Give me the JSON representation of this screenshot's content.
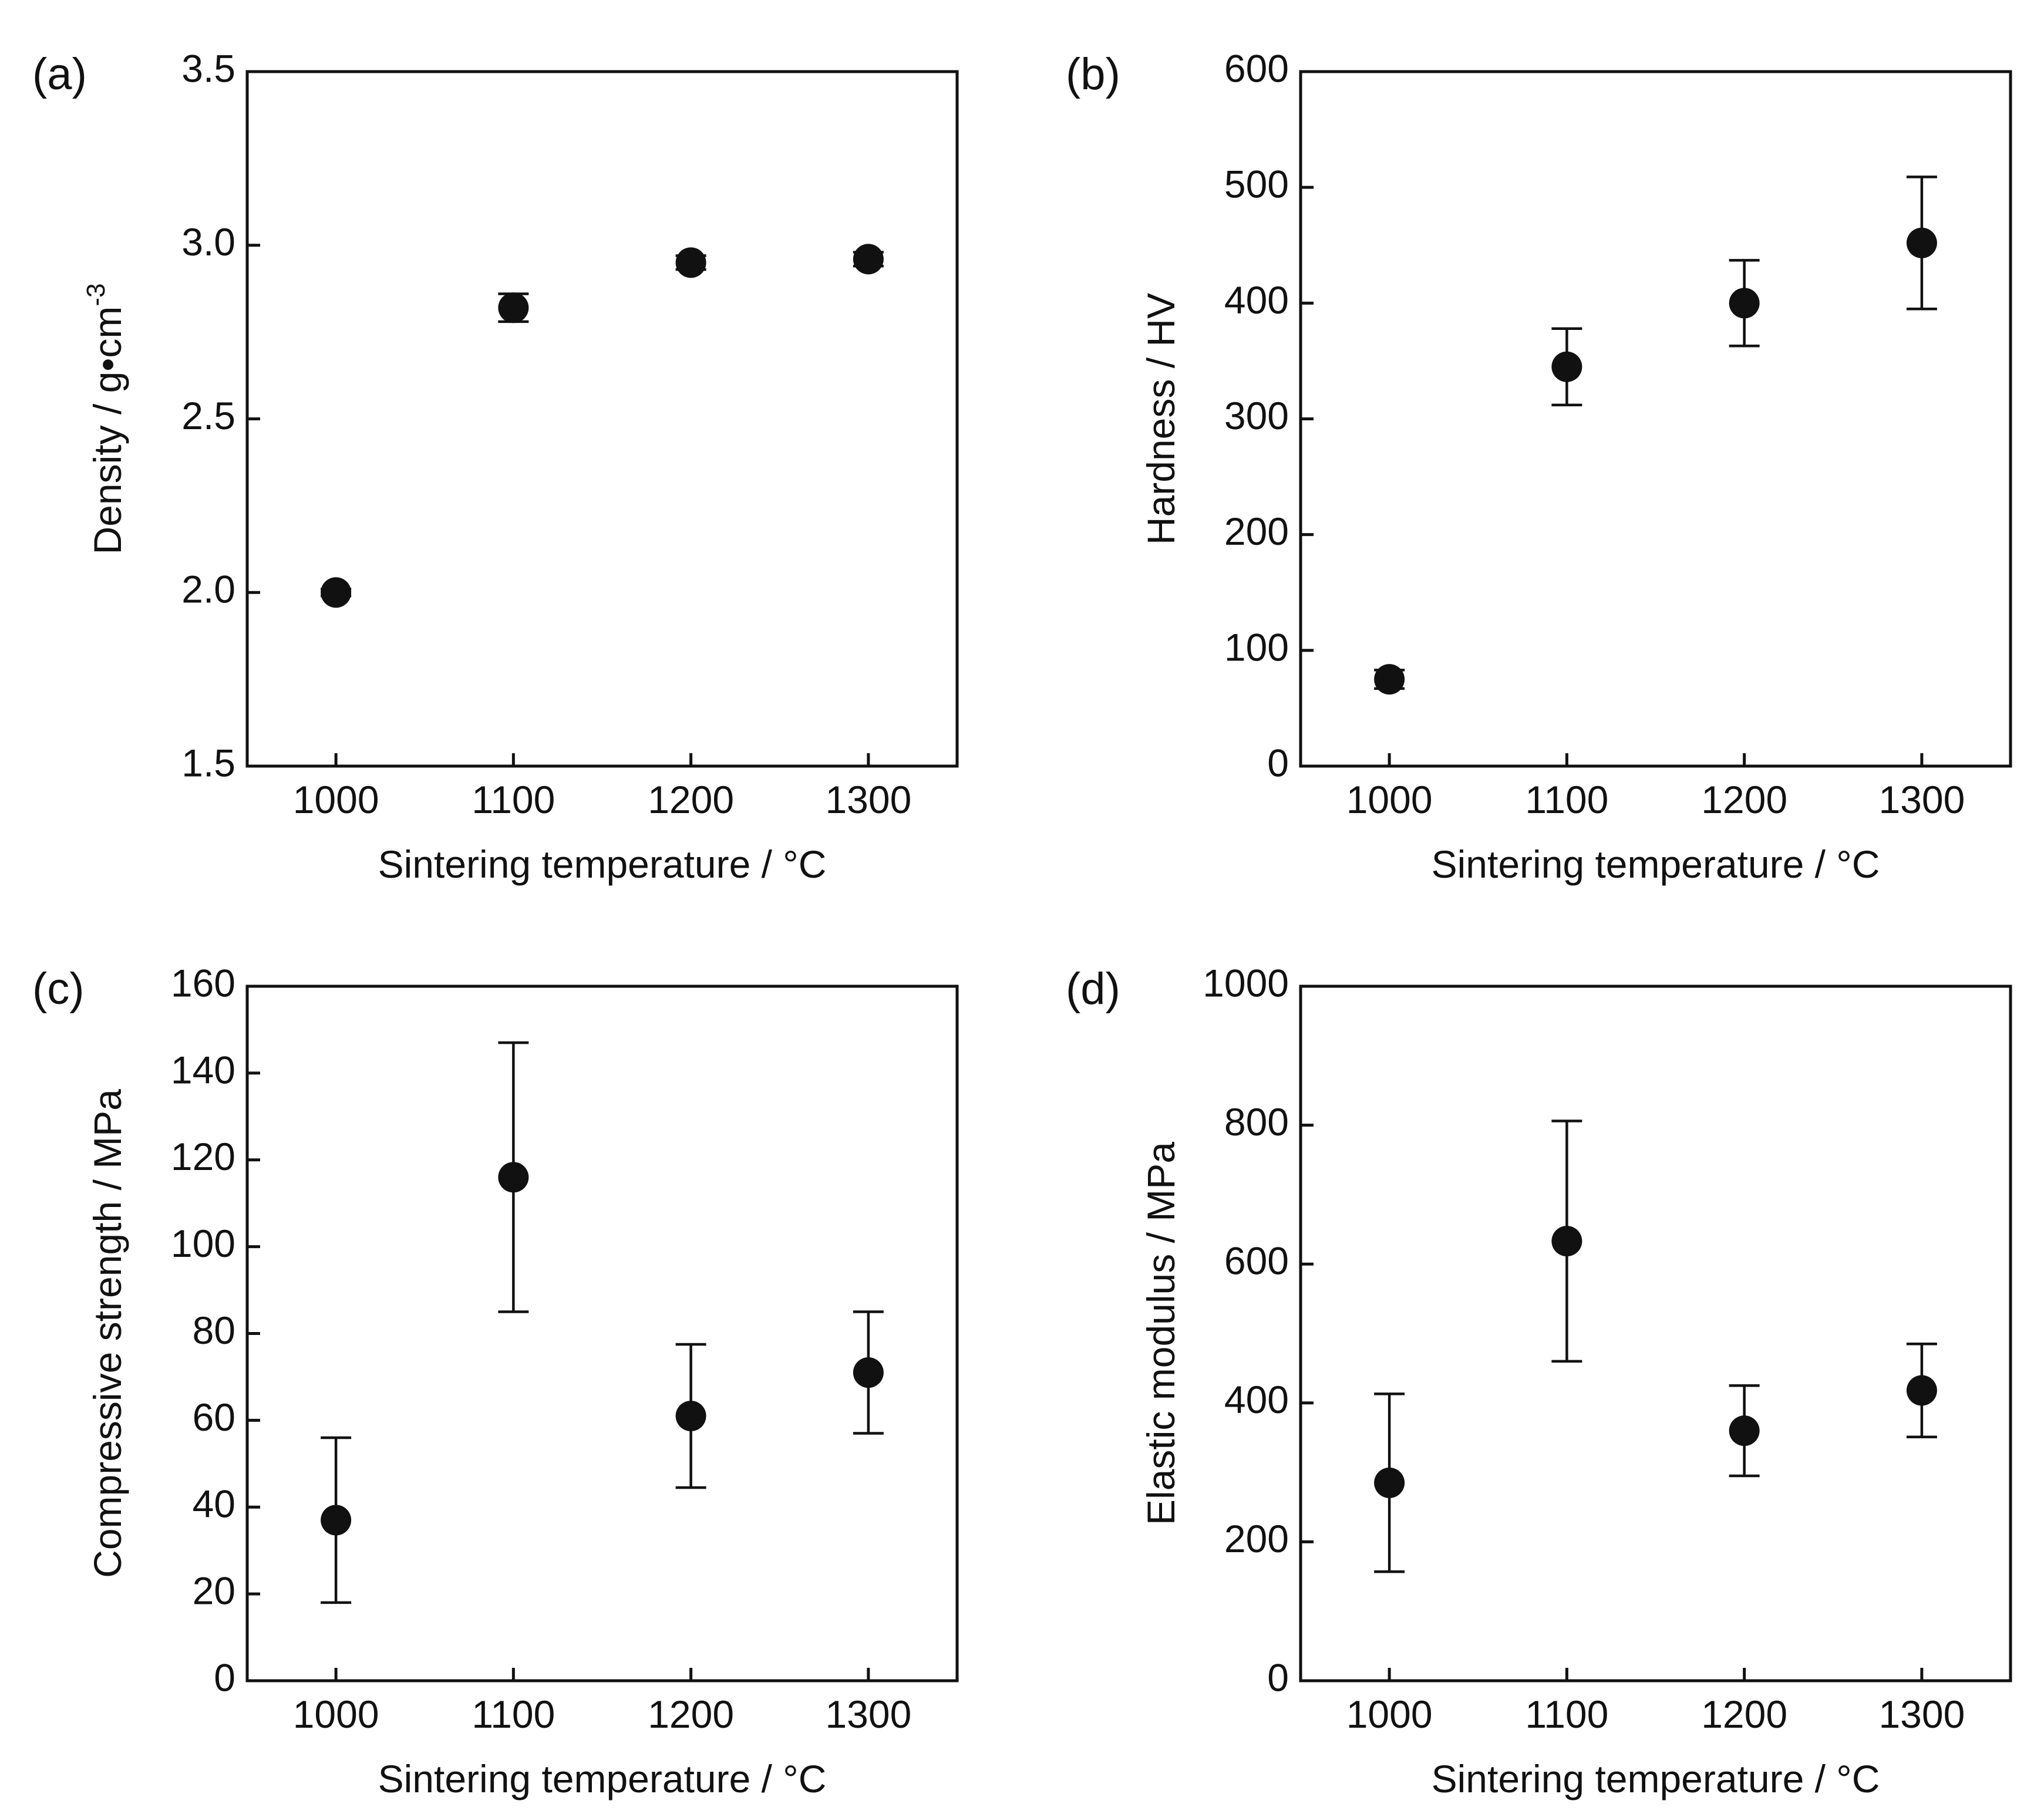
{
  "chart_data": [
    {
      "id": "a",
      "type": "scatter",
      "panel_label": "(a)",
      "xlabel": "Sintering temperature / °C",
      "ylabel": "Density / g•cm",
      "ylabel_superscript": "-3",
      "x": [
        1000,
        1100,
        1200,
        1300
      ],
      "y": [
        2.0,
        2.82,
        2.95,
        2.96
      ],
      "yerr": [
        0.01,
        0.04,
        0.02,
        0.02
      ],
      "xlim": [
        950,
        1350
      ],
      "ylim": [
        1.5,
        3.5
      ],
      "xticks": [
        1000,
        1100,
        1200,
        1300
      ],
      "yticks": [
        1.5,
        2.0,
        2.5,
        3.0,
        3.5
      ],
      "xtick_labels": [
        "1000",
        "1100",
        "1200",
        "1300"
      ],
      "ytick_labels": [
        "1.5",
        "2.0",
        "2.5",
        "3.0",
        "3.5"
      ],
      "grid": false
    },
    {
      "id": "b",
      "type": "scatter",
      "panel_label": "(b)",
      "xlabel": "Sintering temperature / °C",
      "ylabel": "Hardness / HV",
      "x": [
        1000,
        1100,
        1200,
        1300
      ],
      "y": [
        75,
        345,
        400,
        452
      ],
      "yerr": [
        8,
        33,
        37,
        57
      ],
      "xlim": [
        950,
        1350
      ],
      "ylim": [
        0,
        600
      ],
      "xticks": [
        1000,
        1100,
        1200,
        1300
      ],
      "yticks": [
        0,
        100,
        200,
        300,
        400,
        500,
        600
      ],
      "xtick_labels": [
        "1000",
        "1100",
        "1200",
        "1300"
      ],
      "ytick_labels": [
        "0",
        "100",
        "200",
        "300",
        "400",
        "500",
        "600"
      ],
      "grid": false
    },
    {
      "id": "c",
      "type": "scatter",
      "panel_label": "(c)",
      "xlabel": "Sintering temperature / °C",
      "ylabel": "Compressive strength / MPa",
      "x": [
        1000,
        1100,
        1200,
        1300
      ],
      "y": [
        37,
        116,
        61,
        71
      ],
      "yerr": [
        19,
        31,
        16.5,
        14
      ],
      "xlim": [
        950,
        1350
      ],
      "ylim": [
        0,
        160
      ],
      "xticks": [
        1000,
        1100,
        1200,
        1300
      ],
      "yticks": [
        0,
        20,
        40,
        60,
        80,
        100,
        120,
        140,
        160
      ],
      "xtick_labels": [
        "1000",
        "1100",
        "1200",
        "1300"
      ],
      "ytick_labels": [
        "0",
        "20",
        "40",
        "60",
        "80",
        "100",
        "120",
        "140",
        "160"
      ],
      "grid": false
    },
    {
      "id": "d",
      "type": "scatter",
      "panel_label": "(d)",
      "xlabel": "Sintering temperature / °C",
      "ylabel": "Elastic modulus / MPa",
      "x": [
        1000,
        1100,
        1200,
        1300
      ],
      "y": [
        285,
        633,
        360,
        418
      ],
      "yerr": [
        128,
        173,
        65,
        67
      ],
      "xlim": [
        950,
        1350
      ],
      "ylim": [
        0,
        1000
      ],
      "xticks": [
        1000,
        1100,
        1200,
        1300
      ],
      "yticks": [
        0,
        200,
        400,
        600,
        800,
        1000
      ],
      "xtick_labels": [
        "1000",
        "1100",
        "1200",
        "1300"
      ],
      "ytick_labels": [
        "0",
        "200",
        "400",
        "600",
        "800",
        "1000"
      ],
      "grid": false
    }
  ]
}
